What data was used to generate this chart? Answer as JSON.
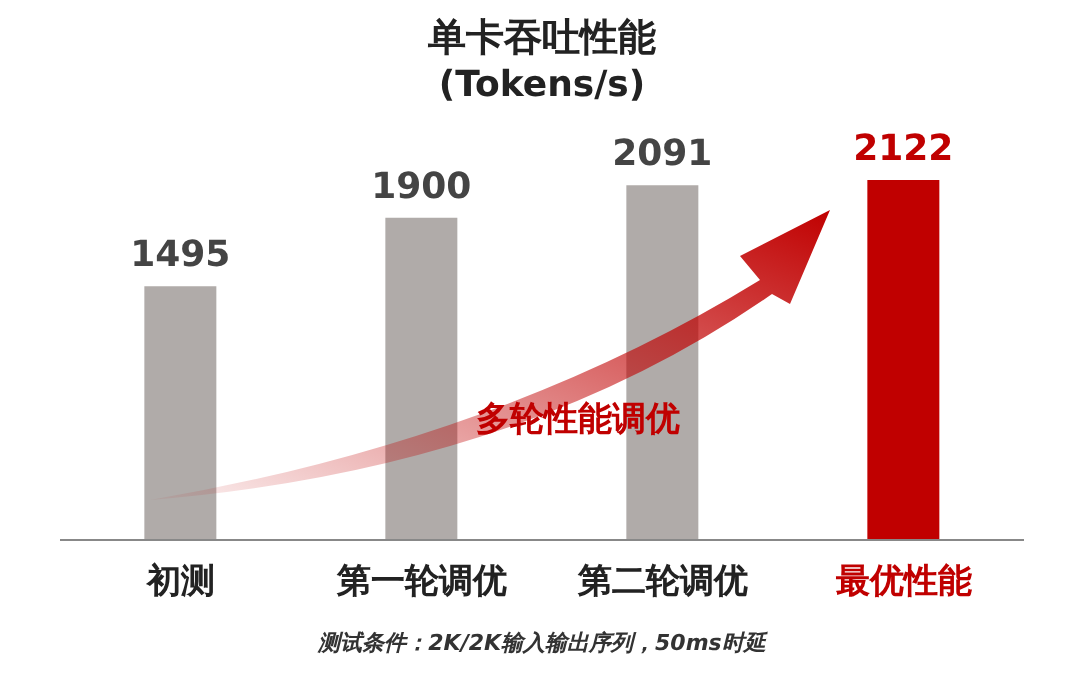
{
  "chart_data": {
    "type": "bar",
    "title": "单卡吞吐性能",
    "subtitle": "(Tokens/s)",
    "categories": [
      "初测",
      "第一轮调优",
      "第二轮调优",
      "最优性能"
    ],
    "values": [
      1495,
      1900,
      2091,
      2122
    ],
    "colors": [
      "#b0aba9",
      "#b0aba9",
      "#b0aba9",
      "#c00000"
    ],
    "data_labels": true,
    "grid": false,
    "legend": false,
    "annotations": [
      "多轮性能调优",
      "测试条件：2K/2K输入输出序列，50ms时延"
    ]
  }
}
